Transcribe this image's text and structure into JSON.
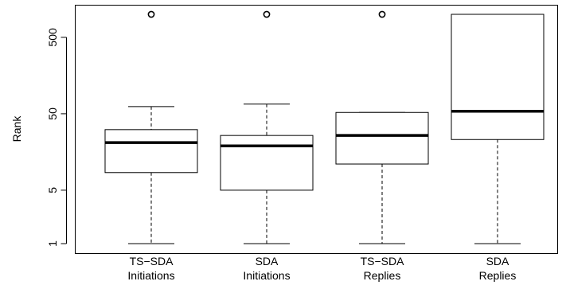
{
  "chart_data": {
    "type": "boxplot",
    "ylabel": "Rank",
    "yscale": "log",
    "yticks": [
      {
        "value": 1,
        "label": "1"
      },
      {
        "value": 5,
        "label": "5"
      },
      {
        "value": 50,
        "label": "50"
      },
      {
        "value": 500,
        "label": "500"
      }
    ],
    "ylim": [
      0.88,
      1250
    ],
    "categories": [
      [
        "TS−SDA",
        "Initiations"
      ],
      [
        "SDA",
        "Initiations"
      ],
      [
        "TS−SDA",
        "Replies"
      ],
      [
        "SDA",
        "Replies"
      ]
    ],
    "boxes": [
      {
        "whisker_low": 1,
        "q1": 8.5,
        "median": 21,
        "q3": 31,
        "whisker_high": 62,
        "outliers": [
          1000
        ]
      },
      {
        "whisker_low": 1,
        "q1": 5,
        "median": 19,
        "q3": 26,
        "whisker_high": 67,
        "outliers": [
          1000
        ]
      },
      {
        "whisker_low": 1,
        "q1": 11,
        "median": 26,
        "q3": 52,
        "whisker_high": 52,
        "outliers": [
          1000
        ]
      },
      {
        "whisker_low": 1,
        "q1": 23,
        "median": 54,
        "q3": 1000,
        "whisker_high": 1000,
        "outliers": []
      }
    ],
    "grid": false,
    "legend": "none",
    "colors": {
      "box_fill": "#ffffff",
      "stroke": "#000000"
    }
  }
}
